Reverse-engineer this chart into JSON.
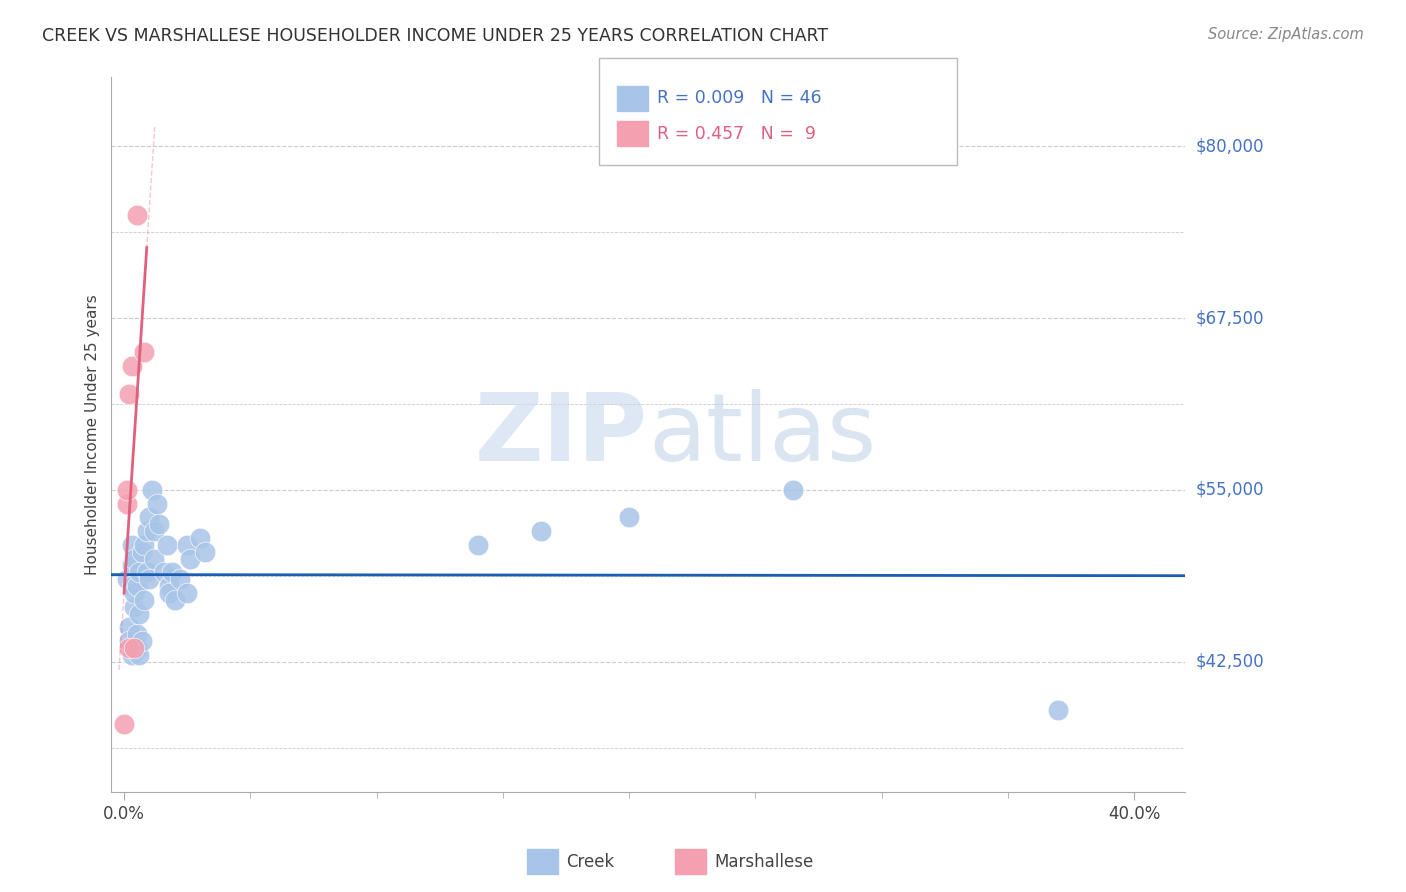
{
  "title": "CREEK VS MARSHALLESE HOUSEHOLDER INCOME UNDER 25 YEARS CORRELATION CHART",
  "source": "Source: ZipAtlas.com",
  "ylabel": "Householder Income Under 25 years",
  "ytick_labels": [
    "$80,000",
    "$67,500",
    "$55,000",
    "$42,500"
  ],
  "ytick_values": [
    80000,
    67500,
    55000,
    42500
  ],
  "y_min": 33000,
  "y_max": 85000,
  "x_min": -0.005,
  "x_max": 0.42,
  "creek_R": "0.009",
  "creek_N": "46",
  "marsh_R": "0.457",
  "marsh_N": "9",
  "creek_color": "#a8c4e8",
  "marsh_color": "#f4a0b0",
  "creek_line_color": "#1a5fb4",
  "marsh_line_color": "#e06080",
  "grid_color": "#cccccc",
  "background_color": "#ffffff",
  "watermark_zip": "ZIP",
  "watermark_atlas": "atlas",
  "creek_x": [
    0.001,
    0.002,
    0.002,
    0.003,
    0.003,
    0.003,
    0.003,
    0.004,
    0.004,
    0.004,
    0.005,
    0.005,
    0.005,
    0.006,
    0.006,
    0.006,
    0.007,
    0.007,
    0.008,
    0.008,
    0.009,
    0.009,
    0.01,
    0.01,
    0.011,
    0.012,
    0.012,
    0.013,
    0.014,
    0.016,
    0.017,
    0.018,
    0.018,
    0.019,
    0.02,
    0.022,
    0.025,
    0.025,
    0.026,
    0.03,
    0.032,
    0.14,
    0.165,
    0.2,
    0.265,
    0.37
  ],
  "creek_y": [
    48500,
    45000,
    44000,
    43000,
    48000,
    49500,
    51000,
    46500,
    47500,
    50000,
    43500,
    44500,
    48000,
    43000,
    46000,
    49000,
    44000,
    50500,
    47000,
    51000,
    49000,
    52000,
    48500,
    53000,
    55000,
    52000,
    50000,
    54000,
    52500,
    49000,
    51000,
    48000,
    47500,
    49000,
    47000,
    48500,
    47500,
    51000,
    50000,
    51500,
    50500,
    51000,
    52000,
    53000,
    55000,
    39000
  ],
  "marsh_x": [
    0.001,
    0.001,
    0.002,
    0.002,
    0.003,
    0.004,
    0.005,
    0.008,
    0.0
  ],
  "marsh_y": [
    54000,
    55000,
    62000,
    43500,
    64000,
    43500,
    75000,
    65000,
    38000
  ]
}
